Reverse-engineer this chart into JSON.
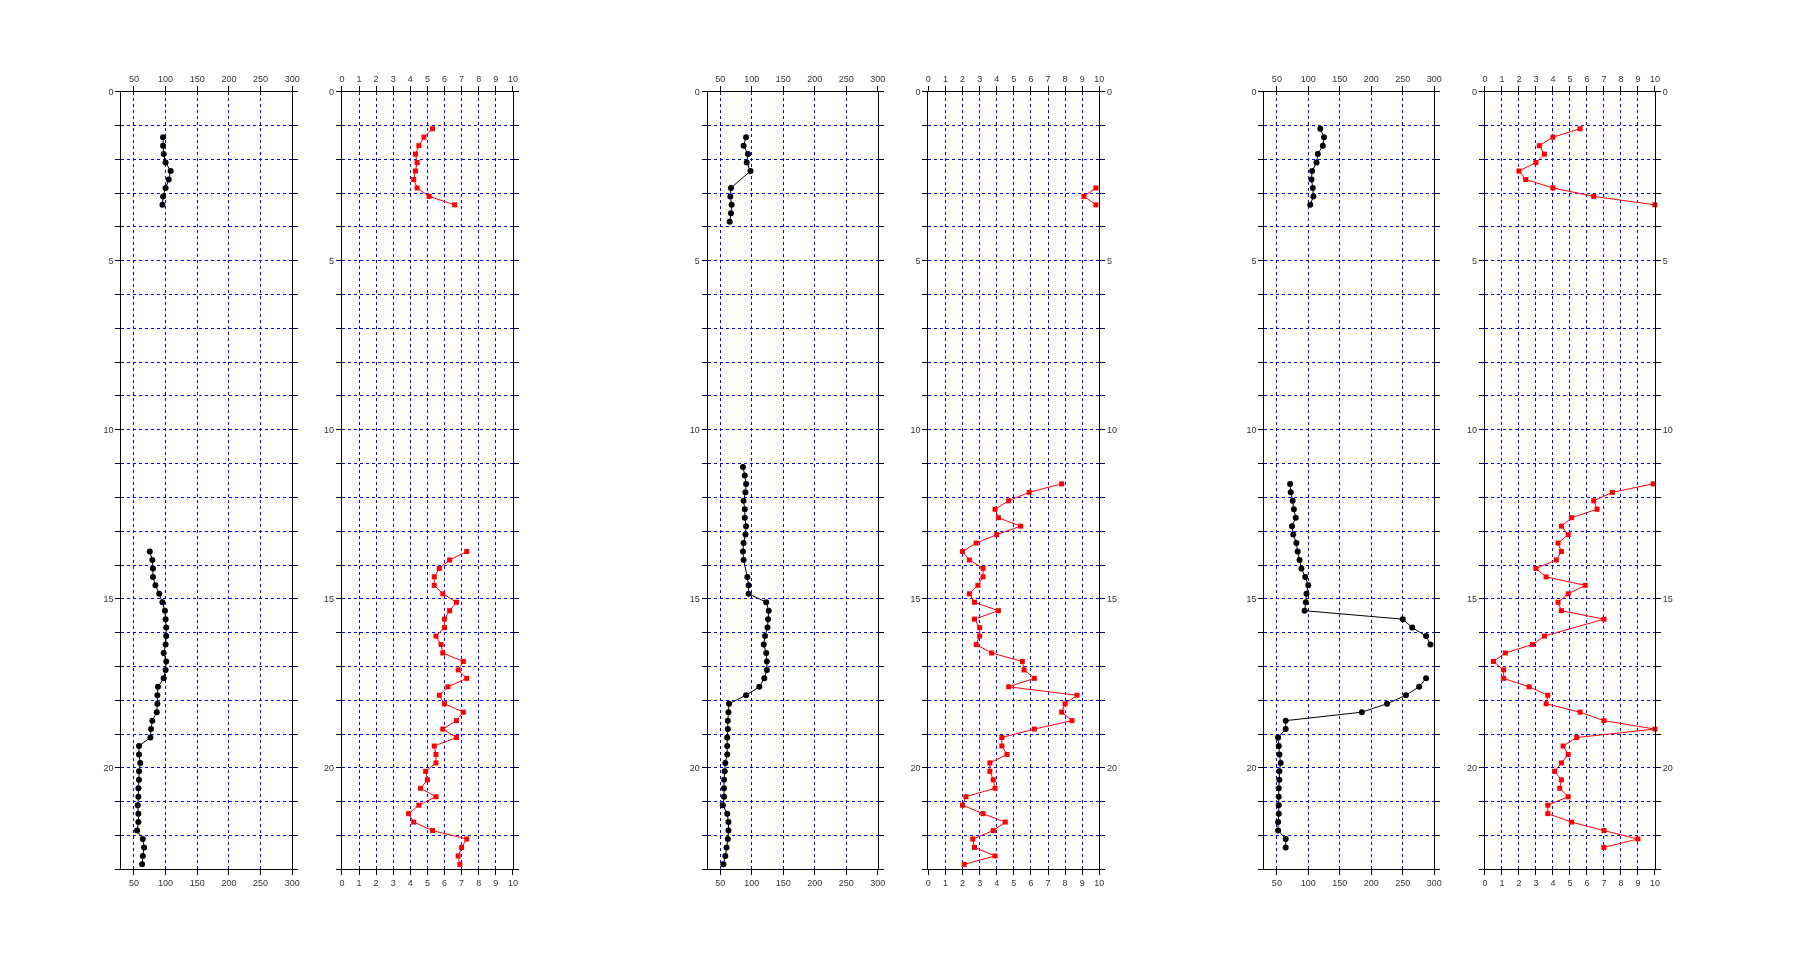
{
  "chart_data": [
    {
      "type": "line",
      "marker": "circle",
      "grid": true,
      "xlim": [
        30,
        300
      ],
      "xticks": [
        50,
        100,
        150,
        200,
        250,
        300
      ],
      "x2lim": [
        30,
        300
      ],
      "x2ticks": [
        50,
        100,
        150,
        200,
        250,
        300
      ],
      "ylim": [
        23,
        0
      ],
      "yticks": [
        0,
        {
          "value": 1,
          "label": null
        },
        {
          "value": 2,
          "label": null
        },
        {
          "value": 3,
          "label": null
        },
        {
          "value": 4,
          "label": null
        },
        5,
        {
          "value": 6,
          "label": null
        },
        {
          "value": 7,
          "label": null
        },
        {
          "value": 8,
          "label": null
        },
        {
          "value": 9,
          "label": null
        },
        10,
        {
          "value": 11,
          "label": null
        },
        {
          "value": 12,
          "label": null
        },
        {
          "value": 13,
          "label": null
        },
        {
          "value": 14,
          "label": null
        },
        15,
        {
          "value": 16,
          "label": null
        },
        {
          "value": 17,
          "label": null
        },
        {
          "value": 18,
          "label": null
        },
        {
          "value": 19,
          "label": null
        },
        20,
        {
          "value": 21,
          "label": null
        },
        {
          "value": 22,
          "label": null
        },
        {
          "value": 23,
          "label": null
        }
      ],
      "series": [
        {
          "color": "#000000",
          "x": [
            96,
            96,
            97,
            100,
            108,
            105,
            100,
            96,
            95
          ],
          "values": [
            1.35,
            1.6,
            1.85,
            2.1,
            2.35,
            2.6,
            2.85,
            3.1,
            3.35
          ]
        },
        {
          "color": "#000000",
          "x": [
            75,
            79,
            80,
            80,
            84,
            90,
            95,
            99,
            100,
            101,
            101,
            100,
            97,
            101,
            100,
            97,
            88,
            87,
            87,
            86,
            79,
            77,
            76,
            58,
            58,
            60,
            58,
            58,
            57,
            57,
            56,
            57,
            57,
            55,
            64,
            66,
            64,
            63
          ],
          "values": [
            13.6,
            13.85,
            14.1,
            14.35,
            14.6,
            14.85,
            15.1,
            15.35,
            15.6,
            15.85,
            16.1,
            16.35,
            16.6,
            16.85,
            17.1,
            17.35,
            17.6,
            17.85,
            18.1,
            18.35,
            18.6,
            18.85,
            19.1,
            19.35,
            19.6,
            19.85,
            20.1,
            20.35,
            20.6,
            20.85,
            21.1,
            21.35,
            21.6,
            21.85,
            22.1,
            22.35,
            22.6,
            22.85
          ]
        }
      ]
    },
    {
      "type": "line",
      "marker": "square",
      "grid": true,
      "xlim": [
        0,
        10
      ],
      "xticks": [
        0,
        1,
        2,
        3,
        4,
        5,
        6,
        7,
        8,
        9,
        10
      ],
      "x2lim": [
        0,
        10
      ],
      "x2ticks": [
        0,
        1,
        2,
        3,
        4,
        5,
        6,
        7,
        8,
        9,
        10
      ],
      "ylim": [
        23,
        0
      ],
      "yticks": [
        0,
        {
          "value": 1,
          "label": null
        },
        {
          "value": 2,
          "label": null
        },
        {
          "value": 3,
          "label": null
        },
        {
          "value": 4,
          "label": null
        },
        5,
        {
          "value": 6,
          "label": null
        },
        {
          "value": 7,
          "label": null
        },
        {
          "value": 8,
          "label": null
        },
        {
          "value": 9,
          "label": null
        },
        10,
        {
          "value": 11,
          "label": null
        },
        {
          "value": 12,
          "label": null
        },
        {
          "value": 13,
          "label": null
        },
        {
          "value": 14,
          "label": null
        },
        15,
        {
          "value": 16,
          "label": null
        },
        {
          "value": 17,
          "label": null
        },
        {
          "value": 18,
          "label": null
        },
        {
          "value": 19,
          "label": null
        },
        20,
        {
          "value": 21,
          "label": null
        },
        {
          "value": 22,
          "label": null
        },
        {
          "value": 23,
          "label": null
        }
      ],
      "series": [
        {
          "color": "#ff0000",
          "x": [
            5.3,
            4.8,
            4.5,
            4.3,
            4.4,
            4.3,
            4.2,
            4.4,
            5.1,
            6.6
          ],
          "values": [
            1.1,
            1.35,
            1.6,
            1.85,
            2.1,
            2.35,
            2.6,
            2.85,
            3.1,
            3.35
          ]
        },
        {
          "color": "#ff0000",
          "x": [
            7.3,
            6.3,
            5.7,
            5.4,
            5.4,
            5.9,
            6.7,
            6.3,
            6.0,
            6.0,
            5.5,
            5.8,
            5.9,
            7.1,
            6.8,
            7.3,
            6.2,
            5.7,
            6.0,
            7.1,
            6.7,
            5.9,
            6.7,
            5.4,
            5.5,
            5.5,
            4.9,
            5.0,
            4.6,
            5.5,
            4.5,
            3.9,
            4.2,
            5.3,
            7.3,
            7.0,
            6.8,
            6.9
          ],
          "values": [
            13.6,
            13.85,
            14.1,
            14.35,
            14.6,
            14.85,
            15.1,
            15.35,
            15.6,
            15.85,
            16.1,
            16.35,
            16.6,
            16.85,
            17.1,
            17.35,
            17.6,
            17.85,
            18.1,
            18.35,
            18.6,
            18.85,
            19.1,
            19.35,
            19.6,
            19.85,
            20.1,
            20.35,
            20.6,
            20.85,
            21.1,
            21.35,
            21.6,
            21.85,
            22.1,
            22.35,
            22.6,
            22.85
          ]
        }
      ]
    },
    {
      "type": "line",
      "marker": "circle",
      "grid": true,
      "xlim": [
        30,
        300
      ],
      "xticks": [
        50,
        100,
        150,
        200,
        250,
        300
      ],
      "x2lim": [
        30,
        300
      ],
      "x2ticks": [
        50,
        100,
        150,
        200,
        250,
        300
      ],
      "ylim": [
        23,
        0
      ],
      "yticks": [
        0,
        {
          "value": 1,
          "label": null
        },
        {
          "value": 2,
          "label": null
        },
        {
          "value": 3,
          "label": null
        },
        {
          "value": 4,
          "label": null
        },
        5,
        {
          "value": 6,
          "label": null
        },
        {
          "value": 7,
          "label": null
        },
        {
          "value": 8,
          "label": null
        },
        {
          "value": 9,
          "label": null
        },
        10,
        {
          "value": 11,
          "label": null
        },
        {
          "value": 12,
          "label": null
        },
        {
          "value": 13,
          "label": null
        },
        {
          "value": 14,
          "label": null
        },
        15,
        {
          "value": 16,
          "label": null
        },
        {
          "value": 17,
          "label": null
        },
        {
          "value": 18,
          "label": null
        },
        {
          "value": 19,
          "label": null
        },
        20,
        {
          "value": 21,
          "label": null
        },
        {
          "value": 22,
          "label": null
        },
        {
          "value": 23,
          "label": null
        }
      ],
      "series": [
        {
          "color": "#000000",
          "x": [
            91,
            87,
            94,
            92,
            98,
            67,
            66,
            68,
            67,
            65
          ],
          "values": [
            1.35,
            1.6,
            1.85,
            2.1,
            2.35,
            2.85,
            3.1,
            3.35,
            3.6,
            3.85
          ]
        },
        {
          "color": "#000000",
          "x": [
            86,
            89,
            91,
            90,
            87,
            89,
            89,
            91,
            90,
            87,
            86,
            87,
            93,
            95,
            95,
            123,
            127,
            126,
            125,
            121,
            119,
            123,
            124,
            124,
            120,
            112,
            91,
            64,
            63,
            62,
            62,
            61,
            61,
            61,
            58,
            57,
            56,
            56,
            56,
            54,
            61,
            63,
            63,
            62,
            60,
            58,
            55
          ],
          "values": [
            11.1,
            11.35,
            11.6,
            11.85,
            12.1,
            12.35,
            12.6,
            12.85,
            13.1,
            13.35,
            13.6,
            13.85,
            14.35,
            14.6,
            14.85,
            15.1,
            15.35,
            15.6,
            15.85,
            16.1,
            16.35,
            16.6,
            16.85,
            17.1,
            17.35,
            17.6,
            17.85,
            18.1,
            18.35,
            18.6,
            18.85,
            19.1,
            19.35,
            19.6,
            19.85,
            20.1,
            20.35,
            20.6,
            20.85,
            21.1,
            21.35,
            21.6,
            21.85,
            22.1,
            22.35,
            22.6,
            22.85
          ]
        }
      ]
    },
    {
      "type": "line",
      "marker": "square",
      "grid": true,
      "xlim": [
        0,
        10
      ],
      "xticks": [
        0,
        1,
        2,
        3,
        4,
        5,
        6,
        7,
        8,
        9,
        10
      ],
      "x2lim": [
        0,
        10
      ],
      "x2ticks": [
        0,
        1,
        2,
        3,
        4,
        5,
        6,
        7,
        8,
        9,
        10
      ],
      "ylim": [
        23,
        0
      ],
      "yticks": [
        0,
        {
          "value": 1,
          "label": null
        },
        {
          "value": 2,
          "label": null
        },
        {
          "value": 3,
          "label": null
        },
        {
          "value": 4,
          "label": null
        },
        5,
        {
          "value": 6,
          "label": null
        },
        {
          "value": 7,
          "label": null
        },
        {
          "value": 8,
          "label": null
        },
        {
          "value": 9,
          "label": null
        },
        10,
        {
          "value": 11,
          "label": null
        },
        {
          "value": 12,
          "label": null
        },
        {
          "value": 13,
          "label": null
        },
        {
          "value": 14,
          "label": null
        },
        15,
        {
          "value": 16,
          "label": null
        },
        {
          "value": 17,
          "label": null
        },
        {
          "value": 18,
          "label": null
        },
        {
          "value": 19,
          "label": null
        },
        20,
        {
          "value": 21,
          "label": null
        },
        {
          "value": 22,
          "label": null
        },
        {
          "value": 23,
          "label": null
        }
      ],
      "y2lim": [
        23,
        0
      ],
      "y2ticks": [
        0,
        {
          "value": 1,
          "label": null
        },
        {
          "value": 2,
          "label": null
        },
        {
          "value": 3,
          "label": null
        },
        {
          "value": 4,
          "label": null
        },
        5,
        {
          "value": 6,
          "label": null
        },
        {
          "value": 7,
          "label": null
        },
        {
          "value": 8,
          "label": null
        },
        {
          "value": 9,
          "label": null
        },
        10,
        {
          "value": 11,
          "label": null
        },
        {
          "value": 12,
          "label": null
        },
        {
          "value": 13,
          "label": null
        },
        {
          "value": 14,
          "label": null
        },
        15,
        {
          "value": 16,
          "label": null
        },
        {
          "value": 17,
          "label": null
        },
        {
          "value": 18,
          "label": null
        },
        {
          "value": 19,
          "label": null
        },
        20,
        {
          "value": 21,
          "label": null
        },
        {
          "value": 22,
          "label": null
        },
        {
          "value": 23,
          "label": null
        }
      ],
      "series": [
        {
          "color": "#ff0000",
          "x": [
            9.8,
            9.1,
            9.8
          ],
          "values": [
            2.85,
            3.1,
            3.35
          ]
        },
        {
          "color": "#ff0000",
          "x": [
            7.8,
            5.9,
            4.7,
            3.9,
            4.1,
            5.4,
            4.0,
            2.8,
            2.0,
            2.4,
            3.2,
            3.2,
            2.9,
            2.4,
            2.7,
            4.1,
            2.7,
            3.0,
            3.0,
            2.8,
            3.7,
            5.5,
            5.6,
            6.2,
            4.7,
            8.7,
            8.0,
            7.8,
            8.4,
            6.2,
            4.3,
            4.3,
            4.6,
            3.6,
            3.6,
            3.8,
            3.9,
            2.2,
            2.0,
            3.2,
            4.5,
            3.8,
            2.6,
            2.7,
            3.9,
            2.1
          ],
          "values": [
            11.6,
            11.85,
            12.1,
            12.35,
            12.6,
            12.85,
            13.1,
            13.35,
            13.6,
            13.85,
            14.1,
            14.35,
            14.6,
            14.85,
            15.1,
            15.35,
            15.6,
            15.85,
            16.1,
            16.35,
            16.6,
            16.85,
            17.1,
            17.35,
            17.6,
            17.85,
            18.1,
            18.35,
            18.6,
            18.85,
            19.1,
            19.35,
            19.6,
            19.85,
            20.1,
            20.35,
            20.6,
            20.85,
            21.1,
            21.35,
            21.6,
            21.85,
            22.1,
            22.35,
            22.6,
            22.85
          ]
        }
      ]
    },
    {
      "type": "line",
      "marker": "circle",
      "grid": true,
      "xlim": [
        30,
        300
      ],
      "xticks": [
        50,
        100,
        150,
        200,
        250,
        300
      ],
      "x2lim": [
        30,
        300
      ],
      "x2ticks": [
        50,
        100,
        150,
        200,
        250,
        300
      ],
      "ylim": [
        23,
        0
      ],
      "yticks": [
        0,
        {
          "value": 1,
          "label": null
        },
        {
          "value": 2,
          "label": null
        },
        {
          "value": 3,
          "label": null
        },
        {
          "value": 4,
          "label": null
        },
        5,
        {
          "value": 6,
          "label": null
        },
        {
          "value": 7,
          "label": null
        },
        {
          "value": 8,
          "label": null
        },
        {
          "value": 9,
          "label": null
        },
        10,
        {
          "value": 11,
          "label": null
        },
        {
          "value": 12,
          "label": null
        },
        {
          "value": 13,
          "label": null
        },
        {
          "value": 14,
          "label": null
        },
        15,
        {
          "value": 16,
          "label": null
        },
        {
          "value": 17,
          "label": null
        },
        {
          "value": 18,
          "label": null
        },
        {
          "value": 19,
          "label": null
        },
        20,
        {
          "value": 21,
          "label": null
        },
        {
          "value": 22,
          "label": null
        },
        {
          "value": 23,
          "label": null
        }
      ],
      "series": [
        {
          "color": "#000000",
          "x": [
            119,
            125,
            123,
            115,
            113,
            106,
            105,
            107,
            108,
            103
          ],
          "values": [
            1.1,
            1.35,
            1.6,
            1.85,
            2.1,
            2.35,
            2.6,
            2.85,
            3.1,
            3.35
          ]
        },
        {
          "color": "#000000",
          "x": [
            71,
            72,
            75,
            77,
            80,
            74,
            76,
            81,
            83,
            86,
            89,
            95,
            100,
            97,
            96,
            94,
            250,
            265,
            287,
            294
          ],
          "values": [
            11.6,
            11.85,
            12.1,
            12.35,
            12.6,
            12.85,
            13.1,
            13.35,
            13.6,
            13.85,
            14.1,
            14.35,
            14.6,
            14.85,
            15.1,
            15.35,
            15.6,
            15.85,
            16.1,
            16.35
          ]
        },
        {
          "color": "#000000",
          "x": [
            287,
            276,
            255,
            225,
            185,
            64,
            64,
            52,
            53,
            54,
            56,
            54,
            54,
            53,
            53,
            53,
            53,
            52,
            52,
            64,
            64
          ],
          "values": [
            17.35,
            17.6,
            17.85,
            18.1,
            18.35,
            18.6,
            18.85,
            19.1,
            19.35,
            19.6,
            19.85,
            20.1,
            20.35,
            20.6,
            20.85,
            21.1,
            21.35,
            21.6,
            21.85,
            22.1,
            22.35
          ]
        }
      ]
    },
    {
      "type": "line",
      "marker": "square",
      "grid": true,
      "xlim": [
        0,
        10
      ],
      "xticks": [
        0,
        1,
        2,
        3,
        4,
        5,
        6,
        7,
        8,
        9,
        10
      ],
      "x2lim": [
        0,
        10
      ],
      "x2ticks": [
        0,
        1,
        2,
        3,
        4,
        5,
        6,
        7,
        8,
        9,
        10
      ],
      "ylim": [
        23,
        0
      ],
      "yticks": [
        0,
        {
          "value": 1,
          "label": null
        },
        {
          "value": 2,
          "label": null
        },
        {
          "value": 3,
          "label": null
        },
        {
          "value": 4,
          "label": null
        },
        5,
        {
          "value": 6,
          "label": null
        },
        {
          "value": 7,
          "label": null
        },
        {
          "value": 8,
          "label": null
        },
        {
          "value": 9,
          "label": null
        },
        10,
        {
          "value": 11,
          "label": null
        },
        {
          "value": 12,
          "label": null
        },
        {
          "value": 13,
          "label": null
        },
        {
          "value": 14,
          "label": null
        },
        15,
        {
          "value": 16,
          "label": null
        },
        {
          "value": 17,
          "label": null
        },
        {
          "value": 18,
          "label": null
        },
        {
          "value": 19,
          "label": null
        },
        20,
        {
          "value": 21,
          "label": null
        },
        {
          "value": 22,
          "label": null
        },
        {
          "value": 23,
          "label": null
        }
      ],
      "y2lim": [
        23,
        0
      ],
      "y2ticks": [
        0,
        {
          "value": 1,
          "label": null
        },
        {
          "value": 2,
          "label": null
        },
        {
          "value": 3,
          "label": null
        },
        {
          "value": 4,
          "label": null
        },
        5,
        {
          "value": 6,
          "label": null
        },
        {
          "value": 7,
          "label": null
        },
        {
          "value": 8,
          "label": null
        },
        {
          "value": 9,
          "label": null
        },
        10,
        {
          "value": 11,
          "label": null
        },
        {
          "value": 12,
          "label": null
        },
        {
          "value": 13,
          "label": null
        },
        {
          "value": 14,
          "label": null
        },
        15,
        {
          "value": 16,
          "label": null
        },
        {
          "value": 17,
          "label": null
        },
        {
          "value": 18,
          "label": null
        },
        {
          "value": 19,
          "label": null
        },
        20,
        {
          "value": 21,
          "label": null
        },
        {
          "value": 22,
          "label": null
        },
        {
          "value": 23,
          "label": null
        }
      ],
      "series": [
        {
          "color": "#ff0000",
          "x": [
            5.6,
            4.0,
            3.2,
            3.5,
            3.0,
            2.0,
            2.4,
            4.0,
            6.4,
            10.0
          ],
          "values": [
            1.1,
            1.35,
            1.6,
            1.85,
            2.1,
            2.35,
            2.6,
            2.85,
            3.1,
            3.35
          ]
        },
        {
          "color": "#ff0000",
          "x": [
            9.9,
            7.5,
            6.4,
            6.6,
            5.1,
            4.5,
            4.9,
            4.3,
            4.5,
            4.2,
            3.0,
            3.6,
            5.9,
            4.9,
            4.3,
            4.5,
            7.0,
            3.5,
            2.8,
            1.2,
            0.5,
            1.1,
            1.1,
            2.6,
            3.7,
            3.6,
            5.6,
            7.0,
            10.0,
            5.4,
            4.6,
            4.9,
            4.5,
            4.1,
            4.5,
            4.4,
            4.9,
            3.7,
            3.7,
            5.1,
            7.0,
            9.0,
            7.0
          ],
          "values": [
            11.6,
            11.85,
            12.1,
            12.35,
            12.6,
            12.85,
            13.1,
            13.35,
            13.6,
            13.85,
            14.1,
            14.35,
            14.6,
            14.85,
            15.1,
            15.35,
            15.6,
            16.1,
            16.35,
            16.6,
            16.85,
            17.1,
            17.35,
            17.6,
            17.85,
            18.1,
            18.35,
            18.6,
            18.85,
            19.1,
            19.35,
            19.6,
            19.85,
            20.1,
            20.35,
            20.6,
            20.85,
            21.1,
            21.35,
            21.6,
            21.85,
            22.1,
            22.35
          ]
        }
      ]
    }
  ]
}
